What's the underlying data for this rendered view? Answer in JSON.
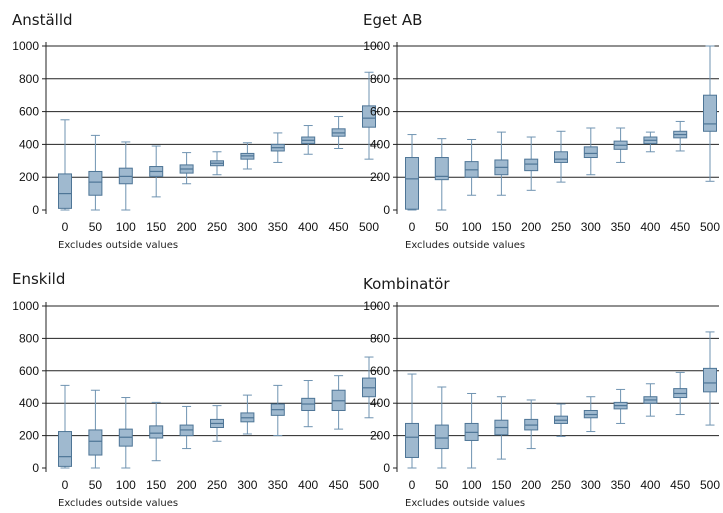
{
  "chart_data": [
    {
      "type": "box",
      "title": "Anställd",
      "note": "Excludes outside values",
      "categories": [
        "0",
        "50",
        "100",
        "150",
        "200",
        "250",
        "300",
        "350",
        "400",
        "450",
        "500"
      ],
      "yticks": [
        0,
        200,
        400,
        600,
        800,
        1000
      ],
      "ylim": [
        0,
        1000
      ],
      "grid": true,
      "boxes": [
        {
          "min": 0,
          "q1": 10,
          "median": 100,
          "q3": 220,
          "max": 550
        },
        {
          "min": 0,
          "q1": 90,
          "median": 170,
          "q3": 235,
          "max": 455
        },
        {
          "min": 0,
          "q1": 160,
          "median": 205,
          "q3": 255,
          "max": 415
        },
        {
          "min": 80,
          "q1": 205,
          "median": 235,
          "q3": 265,
          "max": 390
        },
        {
          "min": 160,
          "q1": 225,
          "median": 250,
          "q3": 275,
          "max": 350
        },
        {
          "min": 215,
          "q1": 270,
          "median": 285,
          "q3": 300,
          "max": 355
        },
        {
          "min": 250,
          "q1": 310,
          "median": 330,
          "q3": 345,
          "max": 410
        },
        {
          "min": 290,
          "q1": 360,
          "median": 380,
          "q3": 400,
          "max": 470
        },
        {
          "min": 340,
          "q1": 405,
          "median": 425,
          "q3": 445,
          "max": 515
        },
        {
          "min": 375,
          "q1": 450,
          "median": 470,
          "q3": 495,
          "max": 570
        },
        {
          "min": 310,
          "q1": 505,
          "median": 560,
          "q3": 635,
          "max": 840
        }
      ]
    },
    {
      "type": "box",
      "title": "Eget AB",
      "note": "Excludes outside values",
      "categories": [
        "0",
        "50",
        "100",
        "150",
        "200",
        "250",
        "300",
        "350",
        "400",
        "450",
        "500"
      ],
      "yticks": [
        0,
        200,
        400,
        600,
        800,
        1000
      ],
      "ylim": [
        0,
        1000
      ],
      "grid": true,
      "boxes": [
        {
          "min": 0,
          "q1": 5,
          "median": 190,
          "q3": 320,
          "max": 460
        },
        {
          "min": 0,
          "q1": 185,
          "median": 205,
          "q3": 320,
          "max": 435
        },
        {
          "min": 90,
          "q1": 200,
          "median": 245,
          "q3": 295,
          "max": 430
        },
        {
          "min": 90,
          "q1": 215,
          "median": 260,
          "q3": 305,
          "max": 475
        },
        {
          "min": 120,
          "q1": 240,
          "median": 280,
          "q3": 310,
          "max": 445
        },
        {
          "min": 170,
          "q1": 290,
          "median": 310,
          "q3": 355,
          "max": 480
        },
        {
          "min": 215,
          "q1": 320,
          "median": 345,
          "q3": 385,
          "max": 500
        },
        {
          "min": 290,
          "q1": 370,
          "median": 395,
          "q3": 420,
          "max": 500
        },
        {
          "min": 355,
          "q1": 405,
          "median": 425,
          "q3": 445,
          "max": 475
        },
        {
          "min": 360,
          "q1": 440,
          "median": 460,
          "q3": 480,
          "max": 540
        },
        {
          "min": 175,
          "q1": 480,
          "median": 525,
          "q3": 700,
          "max": 1000
        }
      ]
    },
    {
      "type": "box",
      "title": "Enskild",
      "note": "Excludes outside values",
      "categories": [
        "0",
        "50",
        "100",
        "150",
        "200",
        "250",
        "300",
        "350",
        "400",
        "450",
        "500"
      ],
      "yticks": [
        0,
        200,
        400,
        600,
        800,
        1000
      ],
      "ylim": [
        0,
        1000
      ],
      "grid": true,
      "boxes": [
        {
          "min": 0,
          "q1": 10,
          "median": 70,
          "q3": 225,
          "max": 510
        },
        {
          "min": 0,
          "q1": 80,
          "median": 165,
          "q3": 235,
          "max": 480
        },
        {
          "min": 0,
          "q1": 135,
          "median": 190,
          "q3": 240,
          "max": 435
        },
        {
          "min": 45,
          "q1": 185,
          "median": 215,
          "q3": 260,
          "max": 405
        },
        {
          "min": 120,
          "q1": 200,
          "median": 235,
          "q3": 265,
          "max": 380
        },
        {
          "min": 165,
          "q1": 250,
          "median": 275,
          "q3": 300,
          "max": 385
        },
        {
          "min": 210,
          "q1": 285,
          "median": 310,
          "q3": 340,
          "max": 450
        },
        {
          "min": 200,
          "q1": 325,
          "median": 360,
          "q3": 395,
          "max": 510
        },
        {
          "min": 255,
          "q1": 355,
          "median": 395,
          "q3": 430,
          "max": 540
        },
        {
          "min": 240,
          "q1": 355,
          "median": 415,
          "q3": 480,
          "max": 570
        },
        {
          "min": 310,
          "q1": 440,
          "median": 495,
          "q3": 555,
          "max": 685
        }
      ]
    },
    {
      "type": "box",
      "title": "Kombinatör",
      "note": "Excludes outside values",
      "categories": [
        "0",
        "50",
        "100",
        "150",
        "200",
        "250",
        "300",
        "350",
        "400",
        "450",
        "500"
      ],
      "yticks": [
        0,
        200,
        400,
        600,
        800,
        1000
      ],
      "ylim": [
        0,
        1000
      ],
      "grid": true,
      "boxes": [
        {
          "min": 0,
          "q1": 65,
          "median": 190,
          "q3": 275,
          "max": 580
        },
        {
          "min": 0,
          "q1": 120,
          "median": 185,
          "q3": 265,
          "max": 500
        },
        {
          "min": 0,
          "q1": 170,
          "median": 220,
          "q3": 275,
          "max": 460
        },
        {
          "min": 55,
          "q1": 205,
          "median": 250,
          "q3": 295,
          "max": 440
        },
        {
          "min": 120,
          "q1": 235,
          "median": 265,
          "q3": 300,
          "max": 420
        },
        {
          "min": 195,
          "q1": 275,
          "median": 295,
          "q3": 320,
          "max": 395
        },
        {
          "min": 225,
          "q1": 310,
          "median": 330,
          "q3": 355,
          "max": 440
        },
        {
          "min": 275,
          "q1": 365,
          "median": 385,
          "q3": 405,
          "max": 485
        },
        {
          "min": 320,
          "q1": 400,
          "median": 420,
          "q3": 440,
          "max": 520
        },
        {
          "min": 330,
          "q1": 435,
          "median": 460,
          "q3": 490,
          "max": 590
        },
        {
          "min": 265,
          "q1": 470,
          "median": 525,
          "q3": 615,
          "max": 840
        }
      ]
    }
  ]
}
